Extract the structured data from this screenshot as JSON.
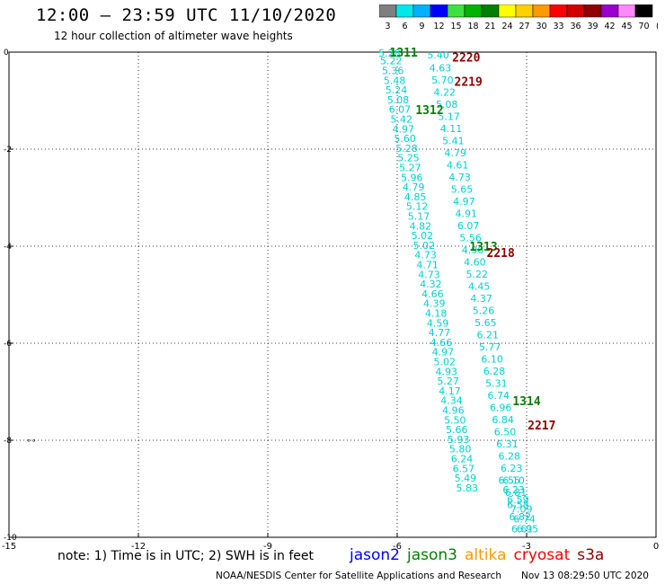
{
  "header": {
    "title": "12:00 – 23:59 UTC 11/10/2020",
    "subtitle": "12 hour collection of altimeter wave heights"
  },
  "colorbar": {
    "unit": "(ft)",
    "levels": [
      "3",
      "6",
      "9",
      "12",
      "15",
      "18",
      "21",
      "24",
      "27",
      "30",
      "33",
      "36",
      "39",
      "42",
      "45",
      "70"
    ],
    "colors": [
      "#7f7f7f",
      "#00e8e8",
      "#00b0ff",
      "#0000ff",
      "#40e040",
      "#00b400",
      "#008000",
      "#ffff00",
      "#ffd000",
      "#ff9900",
      "#ff0000",
      "#d00000",
      "#900000",
      "#9900cc",
      "#ff88ff",
      "#000000"
    ]
  },
  "footer": {
    "note": "note:  1) Time is in UTC;  2) SWH is in feet",
    "credit": "NOAA/NESDIS Center for Satellite Applications and Research",
    "stamp": "Nov 13 08:29:50 UTC 2020",
    "legend": [
      {
        "label": "jason2",
        "color": "#0000ff"
      },
      {
        "label": "jason3",
        "color": "#008000"
      },
      {
        "label": "altika",
        "color": "#ff9900"
      },
      {
        "label": "cryosat",
        "color": "#ff0000"
      },
      {
        "label": "s3a",
        "color": "#900000"
      }
    ]
  },
  "chart_data": {
    "type": "scatter",
    "xlim": [
      -15,
      0
    ],
    "ylim": [
      -10,
      0
    ],
    "xticks": [
      "-15",
      "-12",
      "-9",
      "-6",
      "-3",
      "0"
    ],
    "yticks": [
      "0",
      "-2",
      "-4",
      "-6",
      "-8",
      "-10"
    ],
    "grid": true,
    "label_color": "#00d0d0",
    "track_a": [
      {
        "x": -6.18,
        "y": -0.02,
        "v": "5.28"
      },
      {
        "x": -6.14,
        "y": -0.18,
        "v": "5.22"
      },
      {
        "x": -6.1,
        "y": -0.38,
        "v": "5.36"
      },
      {
        "x": -6.06,
        "y": -0.58,
        "v": "5.48"
      },
      {
        "x": -6.02,
        "y": -0.78,
        "v": "5.24"
      },
      {
        "x": -5.98,
        "y": -0.98,
        "v": "5.08"
      },
      {
        "x": -5.94,
        "y": -1.18,
        "v": "6.07"
      },
      {
        "x": -5.9,
        "y": -1.38,
        "v": "5.42"
      },
      {
        "x": -5.86,
        "y": -1.58,
        "v": "4.97"
      },
      {
        "x": -5.82,
        "y": -1.78,
        "v": "5.60"
      },
      {
        "x": -5.78,
        "y": -1.98,
        "v": "5.28"
      },
      {
        "x": -5.74,
        "y": -2.18,
        "v": "5.25"
      },
      {
        "x": -5.7,
        "y": -2.38,
        "v": "5.27"
      },
      {
        "x": -5.66,
        "y": -2.58,
        "v": "5.96"
      },
      {
        "x": -5.62,
        "y": -2.78,
        "v": "4.79"
      },
      {
        "x": -5.58,
        "y": -2.98,
        "v": "4.85"
      },
      {
        "x": -5.54,
        "y": -3.18,
        "v": "5.12"
      },
      {
        "x": -5.5,
        "y": -3.38,
        "v": "5.17"
      },
      {
        "x": -5.46,
        "y": -3.58,
        "v": "4.82"
      },
      {
        "x": -5.42,
        "y": -3.78,
        "v": "5.02"
      },
      {
        "x": -5.38,
        "y": -3.98,
        "v": "5.02"
      },
      {
        "x": -5.34,
        "y": -4.18,
        "v": "4.73"
      },
      {
        "x": -5.3,
        "y": -4.38,
        "v": "4.71"
      },
      {
        "x": -5.26,
        "y": -4.58,
        "v": "4.73"
      },
      {
        "x": -5.22,
        "y": -4.78,
        "v": "4.32"
      },
      {
        "x": -5.18,
        "y": -4.98,
        "v": "4.66"
      },
      {
        "x": -5.14,
        "y": -5.18,
        "v": "4.39"
      },
      {
        "x": -5.1,
        "y": -5.38,
        "v": "4.18"
      },
      {
        "x": -5.06,
        "y": -5.58,
        "v": "4.59"
      },
      {
        "x": -5.02,
        "y": -5.78,
        "v": "4.77"
      },
      {
        "x": -4.98,
        "y": -5.98,
        "v": "4.66"
      },
      {
        "x": -4.94,
        "y": -6.18,
        "v": "4.97"
      },
      {
        "x": -4.9,
        "y": -6.38,
        "v": "5.02"
      },
      {
        "x": -4.86,
        "y": -6.58,
        "v": "4.93"
      },
      {
        "x": -4.82,
        "y": -6.78,
        "v": "5.27"
      },
      {
        "x": -4.78,
        "y": -6.98,
        "v": "4.17"
      },
      {
        "x": -4.74,
        "y": -7.18,
        "v": "4.34"
      },
      {
        "x": -4.7,
        "y": -7.38,
        "v": "4.96"
      },
      {
        "x": -4.66,
        "y": -7.58,
        "v": "5.50"
      },
      {
        "x": -4.62,
        "y": -7.78,
        "v": "5.66"
      },
      {
        "x": -4.58,
        "y": -7.98,
        "v": "5.93"
      },
      {
        "x": -4.54,
        "y": -8.18,
        "v": "5.80"
      },
      {
        "x": -4.5,
        "y": -8.38,
        "v": "6.24"
      },
      {
        "x": -4.46,
        "y": -8.58,
        "v": "6.57"
      },
      {
        "x": -4.42,
        "y": -8.78,
        "v": "5.49"
      },
      {
        "x": -4.38,
        "y": -8.98,
        "v": "5.83"
      }
    ],
    "track_b": [
      {
        "x": -5.05,
        "y": -0.06,
        "v": "5.40"
      },
      {
        "x": -5.0,
        "y": -0.32,
        "v": "4.63"
      },
      {
        "x": -4.95,
        "y": -0.57,
        "v": "5.70"
      },
      {
        "x": -4.9,
        "y": -0.82,
        "v": "4.22"
      },
      {
        "x": -4.85,
        "y": -1.07,
        "v": "5.08"
      },
      {
        "x": -4.8,
        "y": -1.32,
        "v": "5.17"
      },
      {
        "x": -4.75,
        "y": -1.57,
        "v": "4.11"
      },
      {
        "x": -4.7,
        "y": -1.82,
        "v": "5.41"
      },
      {
        "x": -4.65,
        "y": -2.07,
        "v": "4.79"
      },
      {
        "x": -4.6,
        "y": -2.32,
        "v": "4.61"
      },
      {
        "x": -4.55,
        "y": -2.57,
        "v": "4.73"
      },
      {
        "x": -4.5,
        "y": -2.82,
        "v": "5.65"
      },
      {
        "x": -4.45,
        "y": -3.07,
        "v": "4.97"
      },
      {
        "x": -4.4,
        "y": -3.32,
        "v": "4.91"
      },
      {
        "x": -4.35,
        "y": -3.57,
        "v": "6.07"
      },
      {
        "x": -4.3,
        "y": -3.82,
        "v": "5.56"
      },
      {
        "x": -4.25,
        "y": -4.07,
        "v": "4.96"
      },
      {
        "x": -4.2,
        "y": -4.32,
        "v": "4.60"
      },
      {
        "x": -4.15,
        "y": -4.57,
        "v": "5.22"
      },
      {
        "x": -4.1,
        "y": -4.82,
        "v": "4.45"
      },
      {
        "x": -4.05,
        "y": -5.07,
        "v": "4.37"
      },
      {
        "x": -4.0,
        "y": -5.32,
        "v": "5.26"
      },
      {
        "x": -3.95,
        "y": -5.57,
        "v": "5.65"
      },
      {
        "x": -3.9,
        "y": -5.82,
        "v": "6.21"
      },
      {
        "x": -3.85,
        "y": -6.07,
        "v": "5.77"
      },
      {
        "x": -3.8,
        "y": -6.32,
        "v": "6.10"
      },
      {
        "x": -3.75,
        "y": -6.57,
        "v": "6.28"
      },
      {
        "x": -3.7,
        "y": -6.82,
        "v": "5.31"
      },
      {
        "x": -3.65,
        "y": -7.07,
        "v": "6.74"
      },
      {
        "x": -3.6,
        "y": -7.32,
        "v": "6.96"
      },
      {
        "x": -3.55,
        "y": -7.57,
        "v": "6.84"
      },
      {
        "x": -3.5,
        "y": -7.82,
        "v": "6.50"
      },
      {
        "x": -3.45,
        "y": -8.07,
        "v": "6.31"
      },
      {
        "x": -3.4,
        "y": -8.32,
        "v": "6.28"
      },
      {
        "x": -3.35,
        "y": -8.57,
        "v": "6.23"
      },
      {
        "x": -3.3,
        "y": -8.82,
        "v": "6.10"
      },
      {
        "x": -3.25,
        "y": -9.07,
        "v": "6.81"
      },
      {
        "x": -3.2,
        "y": -9.32,
        "v": "6.58"
      },
      {
        "x": -3.15,
        "y": -9.57,
        "v": "6.82"
      },
      {
        "x": -3.1,
        "y": -9.82,
        "v": "6.61"
      }
    ],
    "track_c": [
      {
        "x": -3.4,
        "y": -8.82,
        "v": "6.55"
      },
      {
        "x": -3.3,
        "y": -9.02,
        "v": "6.23"
      },
      {
        "x": -3.2,
        "y": -9.22,
        "v": "6.59"
      },
      {
        "x": -3.12,
        "y": -9.42,
        "v": "7.09"
      },
      {
        "x": -3.05,
        "y": -9.62,
        "v": "6.74"
      },
      {
        "x": -2.98,
        "y": -9.82,
        "v": "6.95"
      }
    ],
    "time_labels": [
      {
        "x": -5.85,
        "y": -0.02,
        "text": "1311",
        "color": "#008000"
      },
      {
        "x": -5.25,
        "y": -1.2,
        "text": "1312",
        "color": "#008000"
      },
      {
        "x": -4.0,
        "y": -4.02,
        "text": "1313",
        "color": "#008000"
      },
      {
        "x": -3.0,
        "y": -7.2,
        "text": "1314",
        "color": "#008000"
      },
      {
        "x": -4.4,
        "y": -0.12,
        "text": "2220",
        "color": "#900000"
      },
      {
        "x": -4.35,
        "y": -0.62,
        "text": "2219",
        "color": "#900000"
      },
      {
        "x": -3.6,
        "y": -4.15,
        "text": "2218",
        "color": "#900000"
      },
      {
        "x": -2.65,
        "y": -7.7,
        "text": "2217",
        "color": "#900000"
      }
    ],
    "marker": {
      "x": -14.6,
      "y": -8.0,
      "text": "∘∘"
    }
  }
}
